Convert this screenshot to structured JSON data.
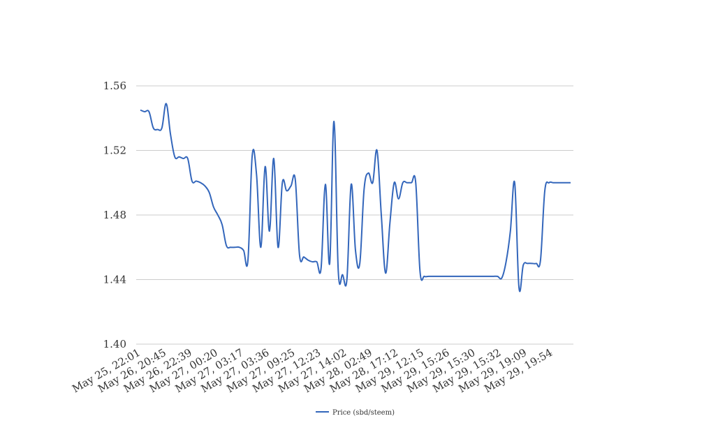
{
  "chart_data": {
    "type": "line",
    "title": "",
    "xlabel": "",
    "ylabel": "",
    "ylim": [
      1.4,
      1.56
    ],
    "yticks": [
      "1.40",
      "1.44",
      "1.48",
      "1.52",
      "1.56"
    ],
    "grid": true,
    "legend_position": "bottom-center",
    "x_tick_labels": [
      "May 25, 22:01",
      "May 26, 20:45",
      "May 26, 22:39",
      "May 27, 00:20",
      "May 27, 03:17",
      "May 27, 03:36",
      "May 27, 09:25",
      "May 27, 12:23",
      "May 27, 14:02",
      "May 28, 02:49",
      "May 28, 17:12",
      "May 29, 12:15",
      "May 29, 15:26",
      "May 29, 15:30",
      "May 29, 15:32",
      "May 29, 19:09",
      "May 29, 19:54"
    ],
    "series": [
      {
        "name": "Price (sbd/steem)",
        "color": "#3366bb",
        "values": [
          1.545,
          1.544,
          1.544,
          1.534,
          1.533,
          1.534,
          1.549,
          1.53,
          1.516,
          1.516,
          1.515,
          1.515,
          1.501,
          1.501,
          1.5,
          1.498,
          1.494,
          1.485,
          1.48,
          1.474,
          1.461,
          1.46,
          1.46,
          1.46,
          1.458,
          1.452,
          1.517,
          1.505,
          1.46,
          1.51,
          1.47,
          1.515,
          1.46,
          1.5,
          1.495,
          1.498,
          1.502,
          1.455,
          1.454,
          1.452,
          1.451,
          1.451,
          1.447,
          1.499,
          1.45,
          1.538,
          1.445,
          1.443,
          1.44,
          1.499,
          1.458,
          1.45,
          1.496,
          1.506,
          1.5,
          1.52,
          1.48,
          1.444,
          1.475,
          1.5,
          1.49,
          1.5,
          1.5,
          1.5,
          1.5,
          1.445,
          1.442,
          1.442,
          1.442,
          1.442,
          1.442,
          1.442,
          1.442,
          1.442,
          1.442,
          1.442,
          1.442,
          1.442,
          1.442,
          1.442,
          1.442,
          1.442,
          1.442,
          1.442,
          1.441,
          1.451,
          1.47,
          1.5,
          1.435,
          1.449,
          1.45,
          1.45,
          1.45,
          1.452,
          1.495,
          1.5,
          1.5,
          1.5,
          1.5,
          1.5,
          1.5
        ]
      }
    ]
  }
}
